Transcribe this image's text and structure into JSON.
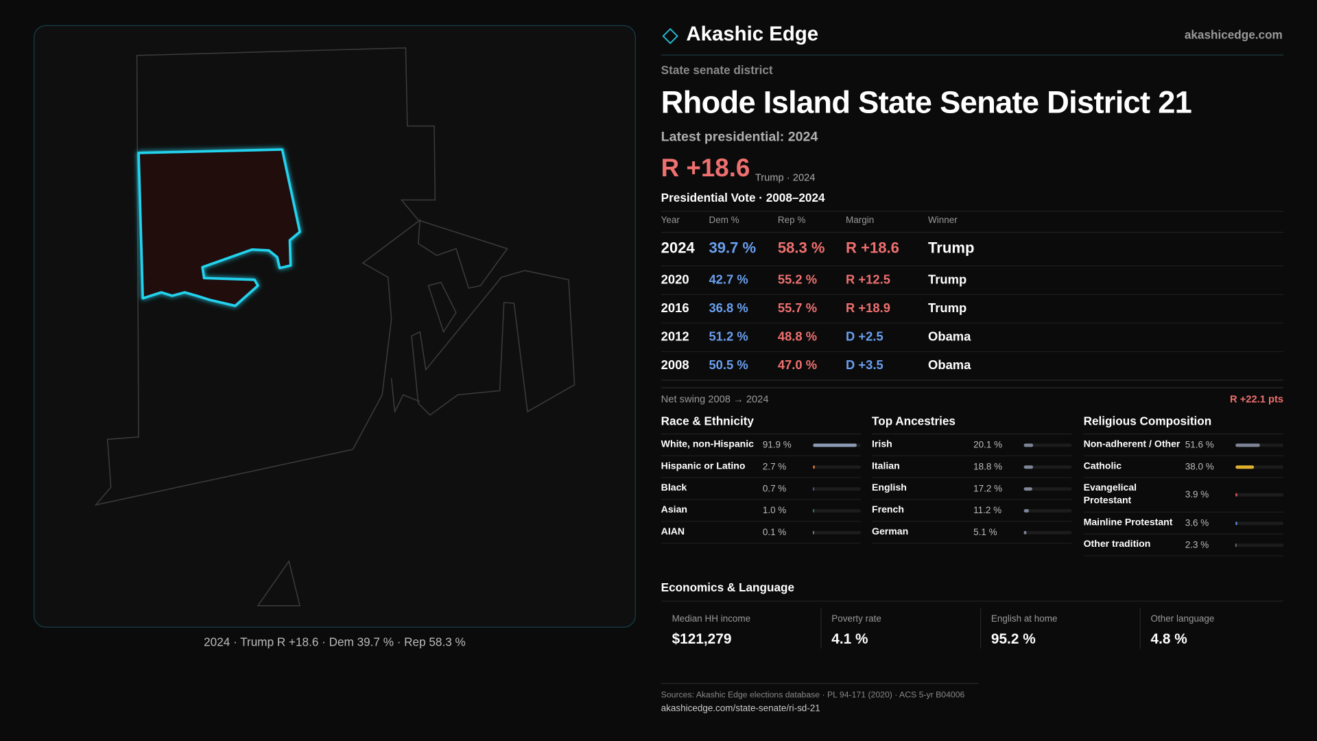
{
  "header": {
    "brand": "Akashic Edge",
    "site": "akashicedge.com"
  },
  "kicker": "State senate district",
  "title": "Rhode Island State Senate District 21",
  "latest": "Latest presidential: 2024",
  "headline": {
    "margin": "R +18.6",
    "note": "Trump · 2024"
  },
  "table": {
    "title": "Presidential Vote · 2008–2024",
    "columns": [
      "Year",
      "Dem %",
      "Rep %",
      "Margin",
      "Winner"
    ],
    "rows": [
      [
        "2024",
        "39.7 %",
        "58.3 %",
        "R +18.6",
        "Trump"
      ],
      [
        "2020",
        "42.7 %",
        "55.2 %",
        "R +12.5",
        "Trump"
      ],
      [
        "2016",
        "36.8 %",
        "55.7 %",
        "R +18.9",
        "Trump"
      ],
      [
        "2012",
        "51.2 %",
        "48.8 %",
        "D +2.5",
        "Obama"
      ],
      [
        "2008",
        "50.5 %",
        "47.0 %",
        "D +3.5",
        "Obama"
      ]
    ]
  },
  "swing": {
    "label": "Net swing 2008 → 2024",
    "value": "R +22.1 pts"
  },
  "panels": [
    {
      "title": "Race & Ethnicity",
      "items": [
        {
          "name": "White, non-Hispanic",
          "value": 91.9,
          "label": "91.9 %",
          "color": "#8b9bb4"
        },
        {
          "name": "Hispanic or Latino",
          "value": 2.7,
          "label": "2.7 %",
          "color": "#e07a3a"
        },
        {
          "name": "Black",
          "value": 0.7,
          "label": "0.7 %",
          "color": "#8a6ad0"
        },
        {
          "name": "Asian",
          "value": 1.0,
          "label": "1.0 %",
          "color": "#3cb878"
        },
        {
          "name": "AIAN",
          "value": 0.1,
          "label": "0.1 %",
          "color": "#b0b0b0"
        }
      ]
    },
    {
      "title": "Top Ancestries",
      "items": [
        {
          "name": "Irish",
          "value": 20.1,
          "label": "20.1 %",
          "color": "#7d8596"
        },
        {
          "name": "Italian",
          "value": 18.8,
          "label": "18.8 %",
          "color": "#7d8596"
        },
        {
          "name": "English",
          "value": 17.2,
          "label": "17.2 %",
          "color": "#7d8596"
        },
        {
          "name": "French",
          "value": 11.2,
          "label": "11.2 %",
          "color": "#7d8596"
        },
        {
          "name": "German",
          "value": 5.1,
          "label": "5.1 %",
          "color": "#7d8596"
        }
      ]
    },
    {
      "title": "Religious Composition",
      "items": [
        {
          "name": "Non-adherent / Other",
          "value": 51.6,
          "label": "51.6 %",
          "color": "#7d8596"
        },
        {
          "name": "Catholic",
          "value": 38.0,
          "label": "38.0 %",
          "color": "#e0b030"
        },
        {
          "name": "Evangelical Protestant",
          "value": 3.9,
          "label": "3.9 %",
          "color": "#e05a5a"
        },
        {
          "name": "Mainline Protestant",
          "value": 3.6,
          "label": "3.6 %",
          "color": "#5a8ae0"
        },
        {
          "name": "Other tradition",
          "value": 2.3,
          "label": "2.3 %",
          "color": "#9a9a9a"
        }
      ]
    }
  ],
  "economics": {
    "title": "Economics & Language",
    "cards": [
      {
        "label": "Median HH income",
        "value": "$121,279"
      },
      {
        "label": "Poverty rate",
        "value": "4.1 %"
      },
      {
        "label": "English at home",
        "value": "95.2 %"
      },
      {
        "label": "Other language",
        "value": "4.8 %"
      }
    ]
  },
  "map": {
    "caption": "2024 · Trump R +18.6 · Dem 39.7 % · Rep 58.3 %"
  },
  "sources": {
    "line": "Sources: Akashic Edge elections database · PL 94-171 (2020) · ACS 5-yr B04006",
    "url": "akashicedge.com/state-senate/ri-sd-21"
  }
}
